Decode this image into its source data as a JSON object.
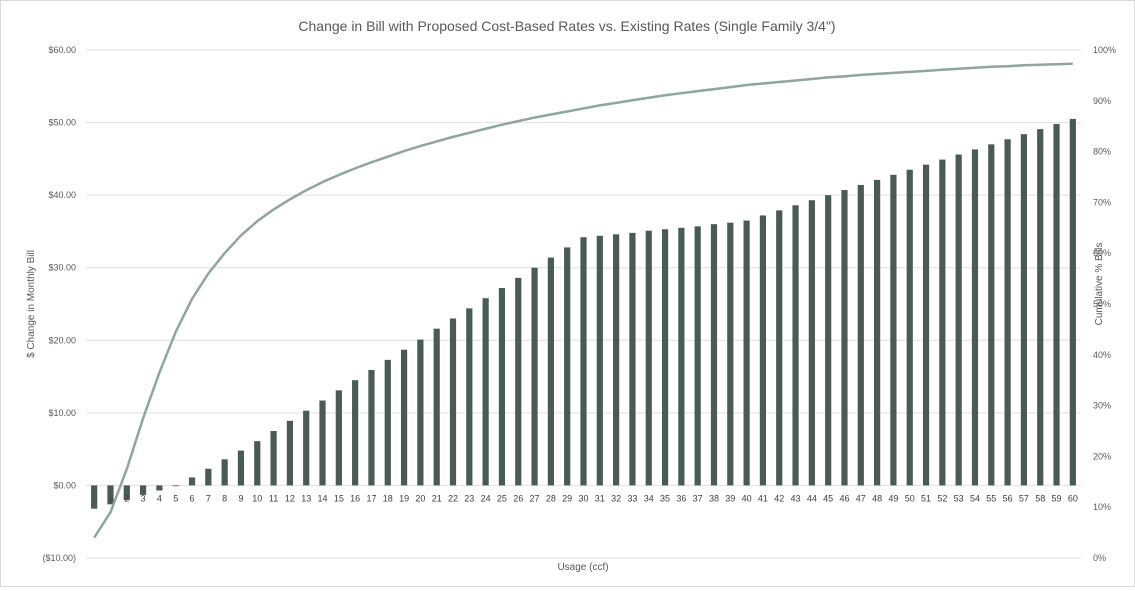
{
  "chart_data": {
    "type": "bar",
    "title": "Change in Bill with Proposed Cost-Based Rates vs. Existing Rates (Single Family 3/4\")",
    "xlabel": "Usage (ccf)",
    "ylabel": "$ Change in Monthly Bill",
    "y2label": "Cumulative % Bills",
    "ylim": [
      -10,
      60
    ],
    "y2lim": [
      0,
      100
    ],
    "yticks": [
      "($10.00)",
      "$0.00",
      "$10.00",
      "$20.00",
      "$30.00",
      "$40.00",
      "$50.00",
      "$60.00"
    ],
    "y2ticks": [
      "0%",
      "10%",
      "20%",
      "30%",
      "40%",
      "50%",
      "60%",
      "70%",
      "80%",
      "90%",
      "100%"
    ],
    "categories": [
      "0",
      "1",
      "2",
      "3",
      "4",
      "5",
      "6",
      "7",
      "8",
      "9",
      "10",
      "11",
      "12",
      "13",
      "14",
      "15",
      "16",
      "17",
      "18",
      "19",
      "20",
      "21",
      "22",
      "23",
      "24",
      "25",
      "26",
      "27",
      "28",
      "29",
      "30",
      "31",
      "32",
      "33",
      "34",
      "35",
      "36",
      "37",
      "38",
      "39",
      "40",
      "41",
      "42",
      "43",
      "44",
      "45",
      "46",
      "47",
      "48",
      "49",
      "50",
      "51",
      "52",
      "53",
      "54",
      "55",
      "56",
      "57",
      "58",
      "59",
      "60"
    ],
    "grid": true,
    "legend": "none",
    "colors": {
      "bars": "#4a5a56",
      "line": "#8fa59e",
      "grid": "#e0e0e0"
    },
    "series": [
      {
        "type": "bar",
        "axis": "left",
        "values": [
          -3.2,
          -2.6,
          -2.0,
          -1.3,
          -0.7,
          -0.1,
          1.1,
          2.3,
          3.6,
          4.8,
          6.1,
          7.5,
          8.9,
          10.3,
          11.7,
          13.1,
          14.5,
          15.9,
          17.3,
          18.7,
          20.1,
          21.6,
          23.0,
          24.4,
          25.8,
          27.2,
          28.6,
          30.0,
          31.4,
          32.8,
          34.2,
          34.4,
          34.6,
          34.8,
          35.1,
          35.3,
          35.5,
          35.7,
          36.0,
          36.2,
          36.5,
          37.2,
          37.9,
          38.6,
          39.3,
          40.0,
          40.7,
          41.4,
          42.1,
          42.8,
          43.5,
          44.2,
          44.9,
          45.6,
          46.3,
          47.0,
          47.7,
          48.4,
          49.1,
          49.8,
          50.5
        ]
      },
      {
        "type": "line",
        "axis": "right",
        "values": [
          4.0,
          9.0,
          17.5,
          27.5,
          36.5,
          44.5,
          51.0,
          56.0,
          60.0,
          63.5,
          66.3,
          68.6,
          70.6,
          72.4,
          74.0,
          75.4,
          76.7,
          77.9,
          79.0,
          80.1,
          81.1,
          82.0,
          82.9,
          83.7,
          84.5,
          85.3,
          86.0,
          86.7,
          87.3,
          87.9,
          88.5,
          89.1,
          89.6,
          90.1,
          90.6,
          91.1,
          91.5,
          91.9,
          92.3,
          92.7,
          93.1,
          93.4,
          93.7,
          94.0,
          94.3,
          94.6,
          94.8,
          95.1,
          95.3,
          95.5,
          95.7,
          95.9,
          96.1,
          96.3,
          96.5,
          96.7,
          96.8,
          97.0,
          97.1,
          97.2,
          97.3
        ]
      }
    ]
  }
}
